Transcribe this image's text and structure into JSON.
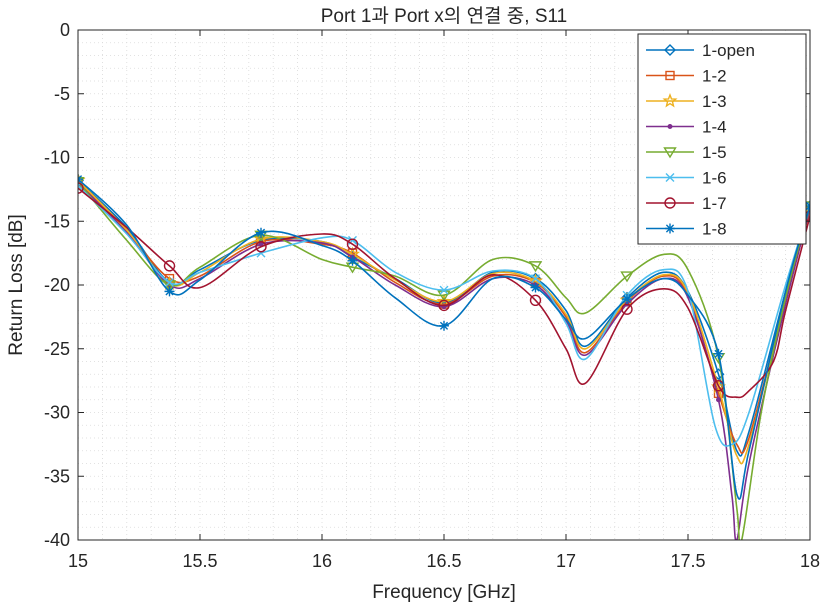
{
  "chart_data": {
    "type": "line",
    "title": "Port 1과 Port x의 연결 중, S11",
    "xlabel": "Frequency [GHz]",
    "ylabel": "Return Loss [dB]",
    "xlim": [
      15,
      18
    ],
    "ylim": [
      -40,
      0
    ],
    "xticks": [
      15,
      15.5,
      16,
      16.5,
      17,
      17.5,
      18
    ],
    "xtick_labels": [
      "15",
      "15.5",
      "16",
      "16.5",
      "17",
      "17.5",
      "18"
    ],
    "yticks": [
      0,
      -5,
      -10,
      -15,
      -20,
      -25,
      -30,
      -35,
      -40
    ],
    "ytick_labels": [
      "0",
      "-5",
      "-10",
      "-15",
      "-20",
      "-25",
      "-30",
      "-35",
      "-40"
    ],
    "grid": "minor-dotted",
    "legend_position": "top-right",
    "series": [
      {
        "name": "1-open",
        "color": "#0072BD",
        "marker": "diamond",
        "x": [
          15.0,
          15.2,
          15.375,
          15.5,
          15.75,
          16.0,
          16.125,
          16.3,
          16.5,
          16.7,
          16.875,
          17.0,
          17.08,
          17.25,
          17.4,
          17.5,
          17.625,
          17.7,
          17.75,
          17.9,
          18.0
        ],
        "y": [
          -11.8,
          -15.5,
          -19.8,
          -18.8,
          -16.5,
          -16.6,
          -17.8,
          -19.5,
          -21.4,
          -19.0,
          -19.5,
          -22.0,
          -24.8,
          -21.0,
          -19.0,
          -20.5,
          -27.0,
          -33.0,
          -31.5,
          -20.5,
          -13.8
        ]
      },
      {
        "name": "1-2",
        "color": "#D95319",
        "marker": "square",
        "x": [
          15.0,
          15.2,
          15.375,
          15.5,
          15.75,
          16.0,
          16.125,
          16.3,
          16.5,
          16.7,
          16.875,
          17.0,
          17.08,
          17.25,
          17.4,
          17.5,
          17.625,
          17.7,
          17.75,
          17.9,
          18.0
        ],
        "y": [
          -11.9,
          -15.8,
          -19.5,
          -19.3,
          -16.6,
          -16.8,
          -17.5,
          -19.8,
          -21.5,
          -19.3,
          -19.8,
          -22.5,
          -25.3,
          -21.3,
          -19.3,
          -20.8,
          -28.5,
          -32.5,
          -32.0,
          -21.0,
          -14.2
        ]
      },
      {
        "name": "1-3",
        "color": "#EDB120",
        "marker": "star",
        "x": [
          15.0,
          15.2,
          15.375,
          15.5,
          15.75,
          16.0,
          16.125,
          16.3,
          16.5,
          16.7,
          16.875,
          17.0,
          17.08,
          17.25,
          17.4,
          17.5,
          17.625,
          17.7,
          17.75,
          17.9,
          18.0
        ],
        "y": [
          -11.8,
          -15.7,
          -19.9,
          -19.0,
          -16.4,
          -16.6,
          -17.6,
          -19.6,
          -21.3,
          -19.1,
          -19.7,
          -22.3,
          -25.0,
          -21.2,
          -19.2,
          -20.6,
          -28.0,
          -33.4,
          -32.5,
          -21.0,
          -14.0
        ]
      },
      {
        "name": "1-4",
        "color": "#7E2F8E",
        "marker": "point",
        "x": [
          15.0,
          15.2,
          15.375,
          15.5,
          15.75,
          16.0,
          16.125,
          16.3,
          16.5,
          16.7,
          16.875,
          17.0,
          17.08,
          17.25,
          17.4,
          17.5,
          17.625,
          17.68,
          17.7,
          17.75,
          17.9,
          18.0
        ],
        "y": [
          -12.0,
          -15.9,
          -20.0,
          -19.5,
          -16.8,
          -16.7,
          -17.8,
          -20.0,
          -21.7,
          -19.5,
          -20.0,
          -22.8,
          -25.5,
          -21.5,
          -19.5,
          -21.0,
          -29.0,
          -36.5,
          -40.0,
          -34.0,
          -21.5,
          -14.0
        ]
      },
      {
        "name": "1-5",
        "color": "#77AC30",
        "marker": "triangle-down",
        "x": [
          15.0,
          15.2,
          15.375,
          15.5,
          15.75,
          16.0,
          16.125,
          16.3,
          16.5,
          16.7,
          16.875,
          17.0,
          17.08,
          17.25,
          17.4,
          17.5,
          17.625,
          17.7,
          17.72,
          17.8,
          17.9,
          18.0
        ],
        "y": [
          -11.9,
          -16.5,
          -20.0,
          -18.6,
          -16.1,
          -18.0,
          -18.6,
          -19.3,
          -20.8,
          -18.0,
          -18.5,
          -21.0,
          -22.2,
          -19.3,
          -17.6,
          -18.8,
          -25.7,
          -37.5,
          -40.0,
          -30.0,
          -21.0,
          -13.8
        ]
      },
      {
        "name": "1-6",
        "color": "#4DBEEE",
        "marker": "x",
        "x": [
          15.0,
          15.2,
          15.375,
          15.5,
          15.75,
          16.0,
          16.125,
          16.3,
          16.5,
          16.7,
          16.875,
          17.0,
          17.08,
          17.25,
          17.4,
          17.5,
          17.61,
          17.68,
          17.75,
          17.9,
          18.0
        ],
        "y": [
          -12.2,
          -16.0,
          -19.8,
          -19.0,
          -17.5,
          -16.3,
          -16.5,
          -19.0,
          -20.4,
          -18.9,
          -19.5,
          -23.0,
          -25.8,
          -20.8,
          -18.8,
          -20.5,
          -31.0,
          -32.5,
          -30.0,
          -20.0,
          -13.8
        ]
      },
      {
        "name": "1-7",
        "color": "#A2142F",
        "marker": "circle",
        "x": [
          15.0,
          15.2,
          15.375,
          15.5,
          15.75,
          16.0,
          16.125,
          16.3,
          16.5,
          16.7,
          16.875,
          17.0,
          17.08,
          17.25,
          17.4,
          17.5,
          17.625,
          17.7,
          17.75,
          17.85,
          17.9,
          18.0
        ],
        "y": [
          -12.4,
          -15.5,
          -18.5,
          -20.2,
          -17.0,
          -16.0,
          -16.8,
          -19.5,
          -21.6,
          -19.2,
          -21.2,
          -25.0,
          -27.7,
          -21.9,
          -20.3,
          -21.8,
          -27.9,
          -28.8,
          -28.3,
          -26.0,
          -22.0,
          -14.6
        ]
      },
      {
        "name": "1-8",
        "color": "#0072BD",
        "marker": "asterisk",
        "x": [
          15.0,
          15.2,
          15.375,
          15.5,
          15.75,
          16.0,
          16.125,
          16.3,
          16.5,
          16.7,
          16.875,
          17.0,
          17.08,
          17.25,
          17.4,
          17.5,
          17.625,
          17.7,
          17.75,
          17.9,
          18.0
        ],
        "y": [
          -11.7,
          -15.3,
          -20.5,
          -19.6,
          -15.9,
          -16.9,
          -18.1,
          -21.0,
          -23.2,
          -19.5,
          -20.2,
          -22.7,
          -24.2,
          -21.1,
          -19.5,
          -20.8,
          -25.4,
          -36.4,
          -33.0,
          -20.5,
          -13.8
        ]
      }
    ]
  }
}
